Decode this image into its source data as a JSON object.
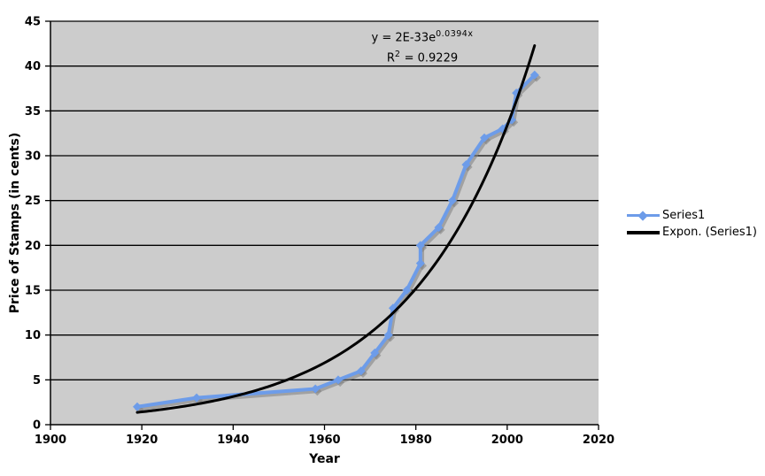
{
  "chart_data": {
    "type": "line",
    "title": "",
    "xlabel": "Year",
    "ylabel": "Price of Stamps (in cents)",
    "xlim": [
      1900,
      2020
    ],
    "ylim": [
      0,
      45
    ],
    "x_ticks": [
      1900,
      1920,
      1940,
      1960,
      1980,
      2000,
      2020
    ],
    "y_ticks": [
      0,
      5,
      10,
      15,
      20,
      25,
      30,
      35,
      40,
      45
    ],
    "grid": "horizontal-major",
    "legend_position": "right",
    "colors": {
      "plot_background": "#cccccc",
      "gridline": "#000000",
      "axis": "#000000",
      "series1": "#6d9ce9",
      "series1_shadow": "rgba(125,125,125,0.55)",
      "trendline": "#000000"
    },
    "series": [
      {
        "name": "Series1",
        "type": "line-with-markers",
        "marker": "diamond",
        "color": "#6d9ce9",
        "x": [
          1919,
          1932,
          1958,
          1963,
          1968,
          1971,
          1974,
          1975,
          1978,
          1981,
          1981,
          1985,
          1988,
          1991,
          1995,
          1999,
          2001,
          2002,
          2006
        ],
        "y": [
          2,
          3,
          4,
          5,
          6,
          8,
          10,
          13,
          15,
          18,
          20,
          22,
          25,
          29,
          32,
          33,
          34,
          37,
          39
        ]
      },
      {
        "name": "Expon. (Series1)",
        "type": "exponential-trendline",
        "color": "#000000",
        "equation": "y = 2E-33e^(0.0394x)",
        "r_squared": 0.9229,
        "a": 2e-33,
        "b": 0.0394,
        "x_range": [
          1919,
          2006.3
        ]
      }
    ],
    "annotation": {
      "equation_prefix": "y = 2E-33e",
      "equation_superscript": "0.0394x",
      "r2_prefix": "R",
      "r2_superscript": "2",
      "r2_suffix": " = 0.9229"
    }
  }
}
